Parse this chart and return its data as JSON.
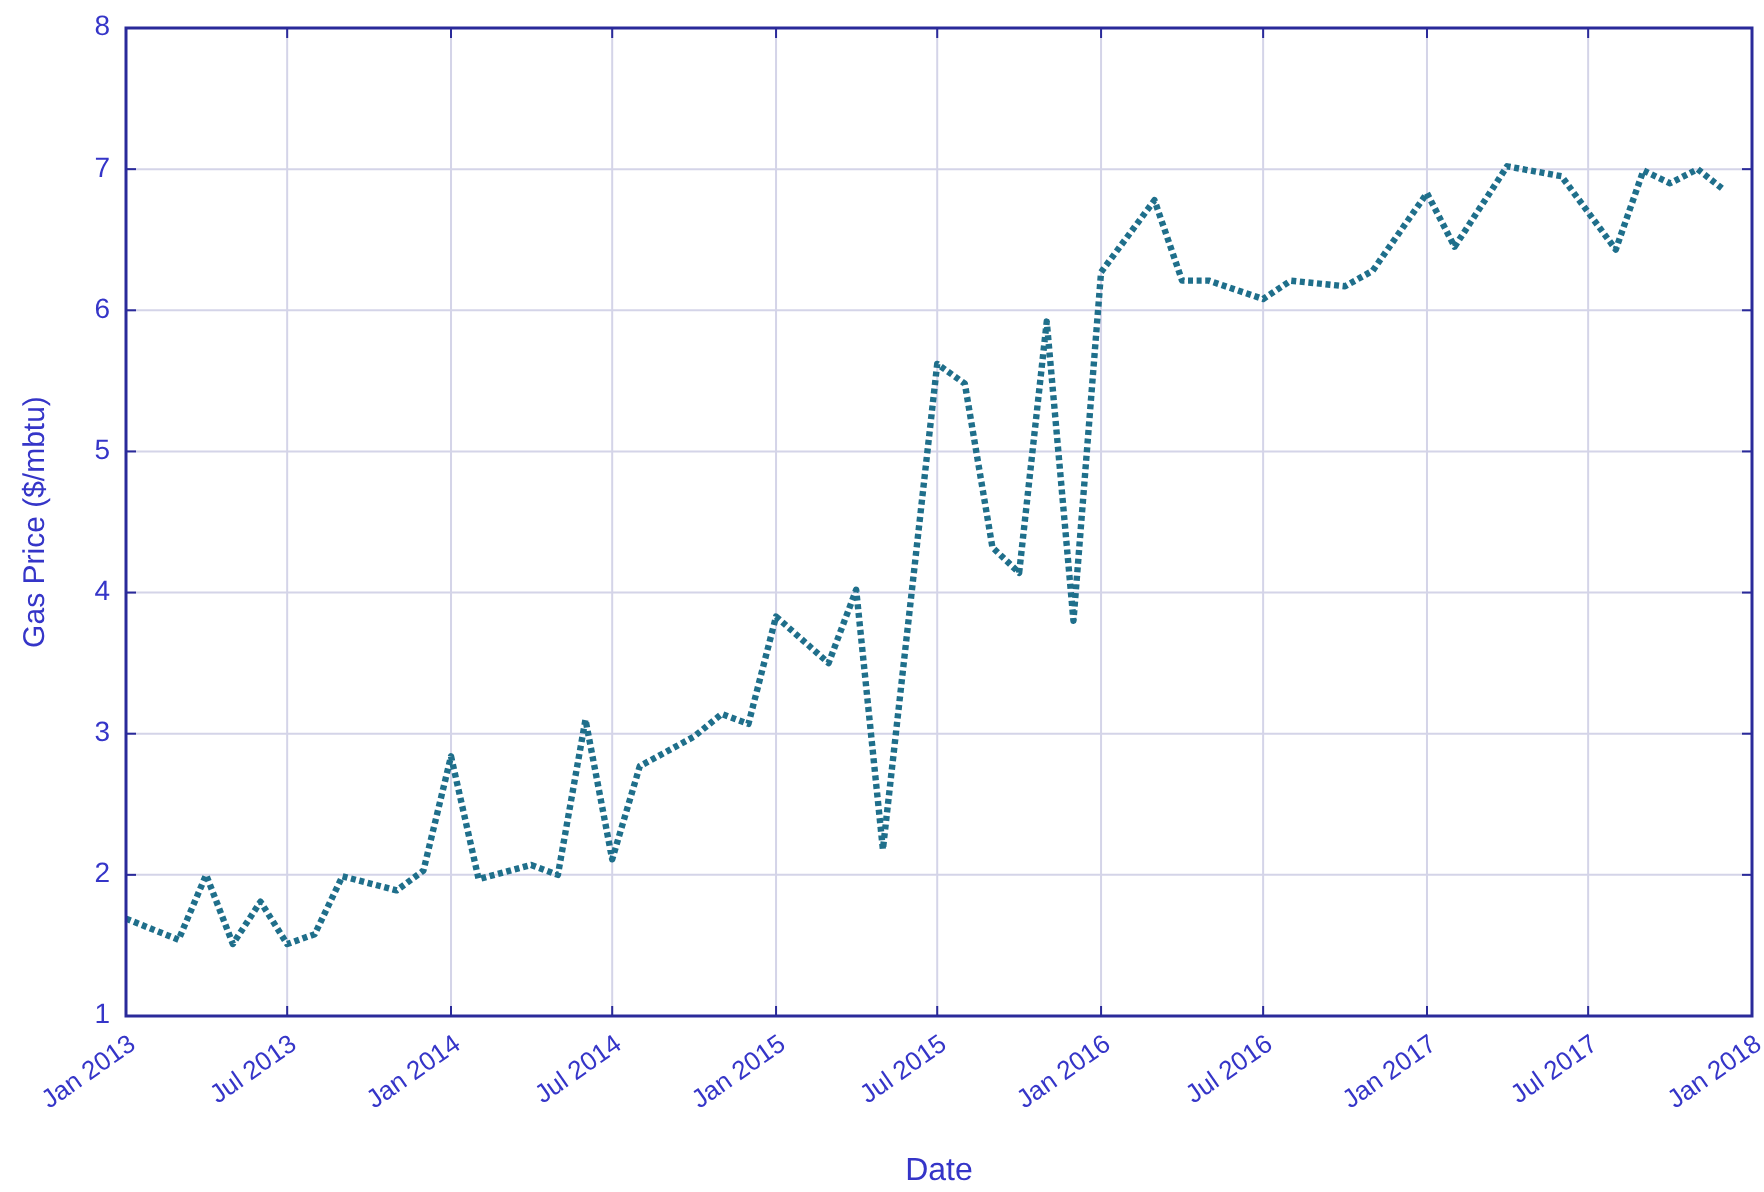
{
  "chart_data": {
    "type": "line",
    "xlabel": "Date",
    "ylabel": "Gas Price ($/mbtu)",
    "x": [
      "2013-01",
      "2013-03",
      "2013-04",
      "2013-05",
      "2013-06",
      "2013-07",
      "2013-08",
      "2013-09",
      "2013-11",
      "2013-12",
      "2014-01",
      "2014-02",
      "2014-04",
      "2014-05",
      "2014-06",
      "2014-07",
      "2014-08",
      "2014-10",
      "2014-11",
      "2014-12",
      "2015-01",
      "2015-03",
      "2015-04",
      "2015-05",
      "2015-07",
      "2015-08",
      "2015-09",
      "2015-10",
      "2015-11",
      "2015-12",
      "2016-01",
      "2016-03",
      "2016-04",
      "2016-05",
      "2016-07",
      "2016-08",
      "2016-10",
      "2016-11",
      "2017-01",
      "2017-02",
      "2017-04",
      "2017-06",
      "2017-08",
      "2017-09",
      "2017-10",
      "2017-11",
      "2017-12"
    ],
    "series": [
      {
        "color": "#1f6f8b",
        "values": [
          1.69,
          1.54,
          2.0,
          1.51,
          1.81,
          1.51,
          1.58,
          1.99,
          1.89,
          2.03,
          2.84,
          1.97,
          2.07,
          2.0,
          3.1,
          2.11,
          2.77,
          2.98,
          3.14,
          3.07,
          3.83,
          3.5,
          4.02,
          2.18,
          5.62,
          5.48,
          4.32,
          4.14,
          5.92,
          3.8,
          6.27,
          6.78,
          6.21,
          6.21,
          6.08,
          6.21,
          6.17,
          6.28,
          6.83,
          6.45,
          7.02,
          6.95,
          6.43,
          6.99,
          6.9,
          7.0,
          6.85
        ]
      }
    ],
    "xlim": [
      "2013-01",
      "2018-01"
    ],
    "xticks": [
      {
        "value": "2013-01",
        "label": "Jan 2013"
      },
      {
        "value": "2013-07",
        "label": "Jul 2013"
      },
      {
        "value": "2014-01",
        "label": "Jan 2014"
      },
      {
        "value": "2014-07",
        "label": "Jul 2014"
      },
      {
        "value": "2015-01",
        "label": "Jan 2015"
      },
      {
        "value": "2015-07",
        "label": "Jul 2015"
      },
      {
        "value": "2016-01",
        "label": "Jan 2016"
      },
      {
        "value": "2016-07",
        "label": "Jul 2016"
      },
      {
        "value": "2017-01",
        "label": "Jan 2017"
      },
      {
        "value": "2017-07",
        "label": "Jul 2017"
      },
      {
        "value": "2018-01",
        "label": "Jan 2018"
      }
    ],
    "ylim": [
      1,
      8
    ],
    "yticks": [
      1,
      2,
      3,
      4,
      5,
      6,
      7,
      8
    ],
    "grid": true,
    "line_style": "dotted"
  }
}
